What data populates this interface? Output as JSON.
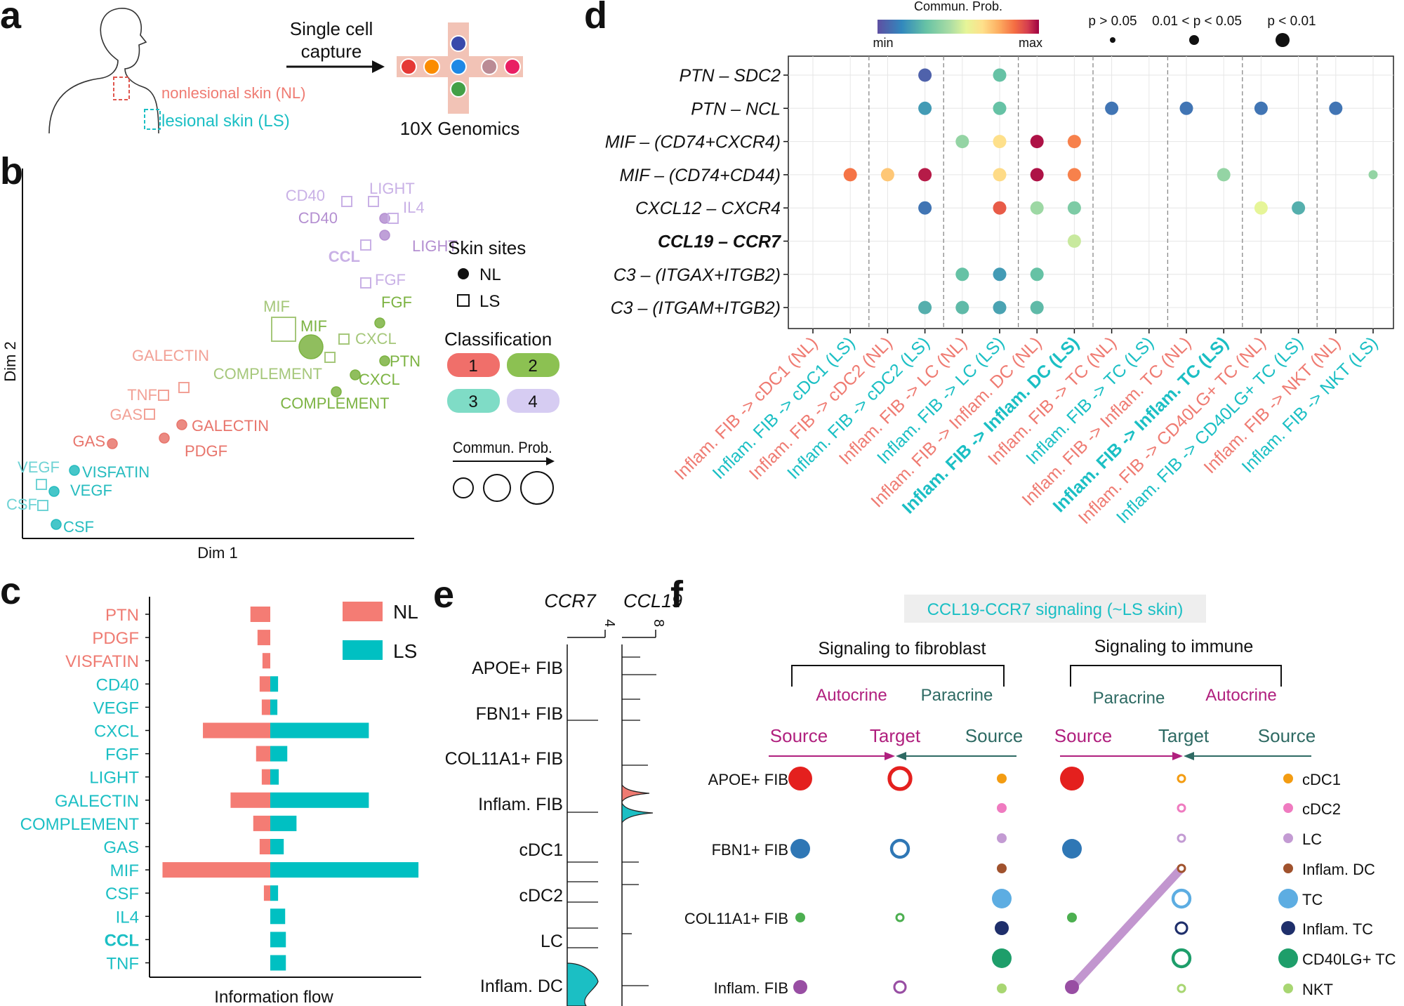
{
  "panels": {
    "a": "a",
    "b": "b",
    "c": "c",
    "d": "d",
    "e": "e",
    "f": "f"
  },
  "colors": {
    "NL": "#ef7b72",
    "LS": "#1bbfc4",
    "c1": "#f06f6a",
    "c2": "#7cb342",
    "c3": "#5dcfb6",
    "c4": "#b99fd8"
  },
  "a": {
    "capture_text": [
      "Single cell",
      "capture"
    ],
    "nl_label": "nonlesional skin (NL)",
    "ls_label": "lesional skin (LS)",
    "platform": "10X Genomics",
    "bead_colors": [
      "#e53935",
      "#fb8c00",
      "#3949ab",
      "#1e88e5",
      "#43a047",
      "#ba8b95",
      "#e91e63"
    ]
  },
  "b": {
    "xlabel": "Dim 1",
    "ylabel": "Dim 2",
    "legend_sites_title": "Skin sites",
    "legend_sites": [
      "NL",
      "LS"
    ],
    "legend_class_title": "Classification",
    "legend_classes": [
      "1",
      "2",
      "3",
      "4"
    ],
    "legend_prob_title": "Commun. Prob.",
    "points": [
      {
        "label": "CD40",
        "site": "LS",
        "cls": 4,
        "size": 1
      },
      {
        "label": "LIGHT",
        "site": "LS",
        "cls": 4,
        "size": 1
      },
      {
        "label": "CD40",
        "site": "NL",
        "cls": 4,
        "size": 1
      },
      {
        "label": "IL4",
        "site": "LS",
        "cls": 4,
        "size": 1
      },
      {
        "label": "LIGHT",
        "site": "NL",
        "cls": 4,
        "size": 1
      },
      {
        "label": "CCL",
        "site": "LS",
        "cls": 4,
        "size": 1
      },
      {
        "label": "FGF",
        "site": "LS",
        "cls": 4,
        "size": 1
      },
      {
        "label": "FGF",
        "site": "NL",
        "cls": 2,
        "size": 1
      },
      {
        "label": "MIF",
        "site": "LS",
        "cls": 2,
        "size": 3
      },
      {
        "label": "MIF",
        "site": "NL",
        "cls": 2,
        "size": 3
      },
      {
        "label": "CXCL",
        "site": "LS",
        "cls": 2,
        "size": 1
      },
      {
        "label": "PTN",
        "site": "NL",
        "cls": 2,
        "size": 1
      },
      {
        "label": "COMPLEMENT",
        "site": "LS",
        "cls": 2,
        "size": 1
      },
      {
        "label": "CXCL",
        "site": "NL",
        "cls": 2,
        "size": 1
      },
      {
        "label": "COMPLEMENT",
        "site": "NL",
        "cls": 2,
        "size": 1
      },
      {
        "label": "GALECTIN",
        "site": "LS",
        "cls": 1,
        "size": 1
      },
      {
        "label": "TNF",
        "site": "LS",
        "cls": 1,
        "size": 1
      },
      {
        "label": "GAS",
        "site": "LS",
        "cls": 1,
        "size": 1
      },
      {
        "label": "GALECTIN",
        "site": "NL",
        "cls": 1,
        "size": 1
      },
      {
        "label": "GAS",
        "site": "NL",
        "cls": 1,
        "size": 1
      },
      {
        "label": "PDGF",
        "site": "NL",
        "cls": 1,
        "size": 1
      },
      {
        "label": "VEGF",
        "site": "LS",
        "cls": 3,
        "size": 1
      },
      {
        "label": "VISFATIN",
        "site": "NL",
        "cls": 3,
        "size": 1
      },
      {
        "label": "VEGF",
        "site": "NL",
        "cls": 3,
        "size": 1
      },
      {
        "label": "CSF",
        "site": "LS",
        "cls": 3,
        "size": 1
      },
      {
        "label": "CSF",
        "site": "NL",
        "cls": 3,
        "size": 1
      }
    ]
  },
  "chart_data": [
    {
      "type": "bar",
      "panel": "c",
      "xlabel": "Information flow",
      "categories": [
        "PTN",
        "PDGF",
        "VISFATIN",
        "CD40",
        "VEGF",
        "CXCL",
        "FGF",
        "LIGHT",
        "GALECTIN",
        "COMPLEMENT",
        "GAS",
        "MIF",
        "CSF",
        "IL4",
        "CCL",
        "TNF"
      ],
      "category_group": [
        "NL",
        "NL",
        "NL",
        "LS",
        "LS",
        "LS",
        "LS",
        "LS",
        "LS",
        "LS",
        "LS",
        "LS",
        "LS",
        "LS",
        "LS",
        "LS"
      ],
      "series": [
        {
          "name": "NL",
          "values": [
            2.8,
            1.8,
            1.1,
            1.5,
            1.2,
            9.5,
            2.0,
            1.2,
            5.6,
            2.4,
            1.5,
            15.2,
            0.9,
            0,
            0,
            0
          ]
        },
        {
          "name": "LS",
          "values": [
            0,
            0,
            0,
            1.1,
            1.0,
            13.9,
            2.4,
            1.2,
            13.9,
            3.7,
            1.9,
            20.9,
            1.1,
            2.1,
            2.2,
            2.2
          ]
        }
      ],
      "legend": [
        "NL",
        "LS"
      ]
    },
    {
      "type": "scatter",
      "panel": "d",
      "legend_title": "Commun. Prob.",
      "colorbar": [
        "min",
        "max"
      ],
      "pvalue_legend": [
        "p > 0.05",
        "0.01 < p < 0.05",
        "p < 0.01"
      ],
      "y_categories": [
        "PTN – SDC2",
        "PTN – NCL",
        "MIF – (CD74+CXCR4)",
        "MIF – (CD74+CD44)",
        "CXCL12 – CXCR4",
        "CCL19 – CCR7",
        "C3 – (ITGAX+ITGB2)",
        "C3 – (ITGAM+ITGB2)"
      ],
      "x_categories": [
        {
          "label": "Inflam. FIB -> cDC1 (NL)",
          "group": "NL",
          "bold": false
        },
        {
          "label": "Inflam. FIB -> cDC1 (LS)",
          "group": "LS",
          "bold": false
        },
        {
          "label": "Inflam. FIB -> cDC2 (NL)",
          "group": "NL",
          "bold": false
        },
        {
          "label": "Inflam. FIB -> cDC2 (LS)",
          "group": "LS",
          "bold": false
        },
        {
          "label": "Inflam. FIB -> LC (NL)",
          "group": "NL",
          "bold": false
        },
        {
          "label": "Inflam. FIB -> LC (LS)",
          "group": "LS",
          "bold": false
        },
        {
          "label": "Inflam. FIB -> Inflam. DC (NL)",
          "group": "NL",
          "bold": false
        },
        {
          "label": "Inflam. FIB -> Inflam. DC (LS)",
          "group": "LS",
          "bold": true
        },
        {
          "label": "Inflam. FIB -> TC (NL)",
          "group": "NL",
          "bold": false
        },
        {
          "label": "Inflam. FIB -> TC (LS)",
          "group": "LS",
          "bold": false
        },
        {
          "label": "Inflam. FIB -> Inflam. TC (NL)",
          "group": "NL",
          "bold": false
        },
        {
          "label": "Inflam. FIB -> Inflam. TC (LS)",
          "group": "LS",
          "bold": true
        },
        {
          "label": "Inflam. FIB -> CD40LG+ TC (NL)",
          "group": "NL",
          "bold": false
        },
        {
          "label": "Inflam. FIB -> CD40LG+ TC (LS)",
          "group": "LS",
          "bold": false
        },
        {
          "label": "Inflam. FIB -> NKT (NL)",
          "group": "NL",
          "bold": false
        },
        {
          "label": "Inflam. FIB -> NKT (LS)",
          "group": "LS",
          "bold": false
        }
      ],
      "points": [
        {
          "x": 3,
          "y": 0,
          "prob": 0.05,
          "p": 2
        },
        {
          "x": 5,
          "y": 0,
          "prob": 0.3,
          "p": 2
        },
        {
          "x": 3,
          "y": 1,
          "prob": 0.2,
          "p": 2
        },
        {
          "x": 5,
          "y": 1,
          "prob": 0.3,
          "p": 2
        },
        {
          "x": 8,
          "y": 1,
          "prob": 0.1,
          "p": 2
        },
        {
          "x": 10,
          "y": 1,
          "prob": 0.1,
          "p": 2
        },
        {
          "x": 12,
          "y": 1,
          "prob": 0.1,
          "p": 2
        },
        {
          "x": 14,
          "y": 1,
          "prob": 0.1,
          "p": 2
        },
        {
          "x": 4,
          "y": 2,
          "prob": 0.4,
          "p": 2
        },
        {
          "x": 5,
          "y": 2,
          "prob": 0.65,
          "p": 2
        },
        {
          "x": 6,
          "y": 2,
          "prob": 0.98,
          "p": 2
        },
        {
          "x": 7,
          "y": 2,
          "prob": 0.82,
          "p": 2
        },
        {
          "x": 1,
          "y": 3,
          "prob": 0.84,
          "p": 2
        },
        {
          "x": 2,
          "y": 3,
          "prob": 0.7,
          "p": 2
        },
        {
          "x": 3,
          "y": 3,
          "prob": 0.97,
          "p": 2
        },
        {
          "x": 5,
          "y": 3,
          "prob": 0.66,
          "p": 2
        },
        {
          "x": 6,
          "y": 3,
          "prob": 0.98,
          "p": 2
        },
        {
          "x": 7,
          "y": 3,
          "prob": 0.82,
          "p": 2
        },
        {
          "x": 11,
          "y": 3,
          "prob": 0.4,
          "p": 2
        },
        {
          "x": 15,
          "y": 3,
          "prob": 0.4,
          "p": 1
        },
        {
          "x": 3,
          "y": 4,
          "prob": 0.1,
          "p": 2
        },
        {
          "x": 5,
          "y": 4,
          "prob": 0.88,
          "p": 2
        },
        {
          "x": 6,
          "y": 4,
          "prob": 0.42,
          "p": 2
        },
        {
          "x": 7,
          "y": 4,
          "prob": 0.35,
          "p": 2
        },
        {
          "x": 12,
          "y": 4,
          "prob": 0.55,
          "p": 2
        },
        {
          "x": 13,
          "y": 4,
          "prob": 0.25,
          "p": 2
        },
        {
          "x": 7,
          "y": 5,
          "prob": 0.5,
          "p": 2
        },
        {
          "x": 4,
          "y": 6,
          "prob": 0.3,
          "p": 2
        },
        {
          "x": 5,
          "y": 6,
          "prob": 0.2,
          "p": 2
        },
        {
          "x": 6,
          "y": 6,
          "prob": 0.3,
          "p": 2
        },
        {
          "x": 3,
          "y": 7,
          "prob": 0.25,
          "p": 2
        },
        {
          "x": 4,
          "y": 7,
          "prob": 0.28,
          "p": 2
        },
        {
          "x": 5,
          "y": 7,
          "prob": 0.22,
          "p": 2
        },
        {
          "x": 6,
          "y": 7,
          "prob": 0.28,
          "p": 2
        }
      ]
    }
  ],
  "e": {
    "genes": [
      "CCR7",
      "CCL19"
    ],
    "gene_max": [
      "4",
      "8"
    ],
    "cell_types": [
      "APOE+ FIB",
      "FBN1+ FIB",
      "COL11A1+ FIB",
      "Inflam. FIB",
      "cDC1",
      "cDC2",
      "LC",
      "Inflam. DC"
    ]
  },
  "f": {
    "banner": "CCL19-CCR7 signaling (~LS skin)",
    "left_title": "Signaling to fibroblast",
    "right_title": "Signaling to immune",
    "left_sub": [
      "Autocrine",
      "Paracrine"
    ],
    "right_sub": [
      "Paracrine",
      "Autocrine"
    ],
    "left_cols": [
      "Source",
      "Target",
      "Source"
    ],
    "right_cols": [
      "Source",
      "Target",
      "Source"
    ],
    "fibroblasts": [
      {
        "label": "APOE+ FIB",
        "color": "#e4201e",
        "size": 4
      },
      {
        "label": "FBN1+ FIB",
        "color": "#2f77b5",
        "size": 3
      },
      {
        "label": "COL11A1+ FIB",
        "color": "#4caf50",
        "size": 1
      },
      {
        "label": "Inflam. FIB",
        "color": "#984ea3",
        "size": 2
      }
    ],
    "immune": [
      {
        "label": "cDC1",
        "color": "#f39c12",
        "size": 1
      },
      {
        "label": "cDC2",
        "color": "#ef7bc0",
        "size": 1
      },
      {
        "label": "LC",
        "color": "#c39bd3",
        "size": 1
      },
      {
        "label": "Inflam. DC",
        "color": "#a0522d",
        "size": 1
      },
      {
        "label": "TC",
        "color": "#5dade2",
        "size": 3
      },
      {
        "label": "Inflam. TC",
        "color": "#1f2f6b",
        "size": 2
      },
      {
        "label": "CD40LG+ TC",
        "color": "#1e9e6a",
        "size": 3
      },
      {
        "label": "NKT",
        "color": "#a8d672",
        "size": 1
      }
    ]
  }
}
